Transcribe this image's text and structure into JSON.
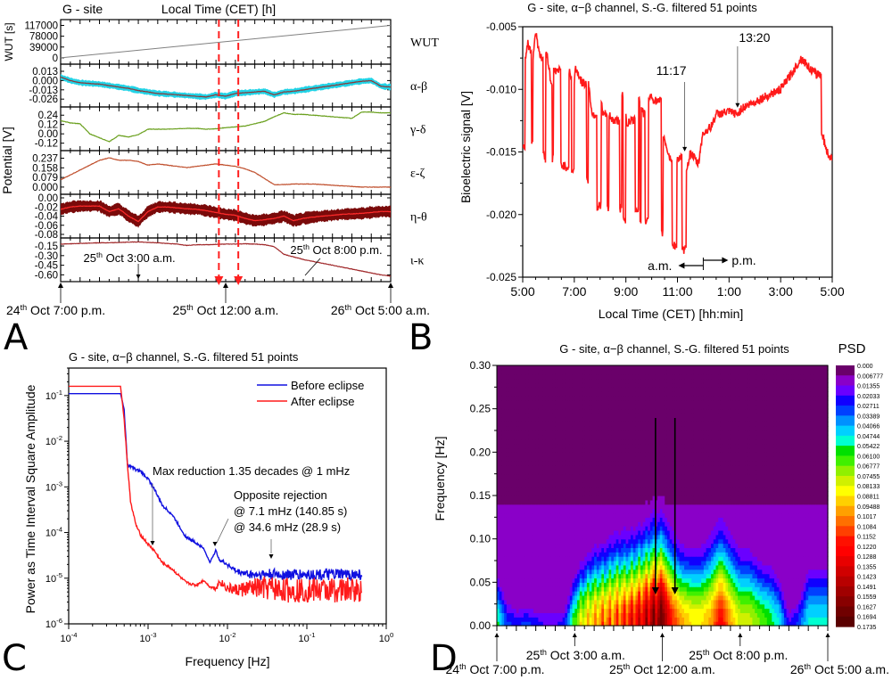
{
  "figure": {
    "panel_letters": [
      "A",
      "B",
      "C",
      "D"
    ]
  },
  "chart_data": [
    {
      "panel": "A",
      "type": "line",
      "title": "G - site",
      "top_label": "Local Time (CET) [h]",
      "ylabel_outer": "Potential [V]",
      "x_start": 0,
      "x_end": 34,
      "x_unit": "hours since 24 Oct 7:00 p.m.",
      "x_major_ticks_every": 1,
      "eclipse_markers_hours": [
        16.3,
        18.3
      ],
      "bottom_annotations": [
        {
          "text_day": "24",
          "text_sup": "th",
          "text_rest": " Oct 7:00 p.m.",
          "x_hour": 0,
          "row": "bottom"
        },
        {
          "text_day": "25",
          "text_sup": "th",
          "text_rest": " Oct 12:00 a.m.",
          "x_hour": 17,
          "row": "bottom"
        },
        {
          "text_day": "26",
          "text_sup": "th",
          "text_rest": " Oct 5:00 a.m.",
          "x_hour": 34,
          "row": "bottom"
        },
        {
          "text_day": "25",
          "text_sup": "th",
          "text_rest": " Oct 3:00 a.m.",
          "x_hour": 8,
          "row": "inner"
        },
        {
          "text_day": "25",
          "text_sup": "th",
          "text_rest": " Oct 8:00 p.m.",
          "x_hour": 25,
          "row": "inner"
        }
      ],
      "subplots": [
        {
          "name": "WUT",
          "ylabel": "WUT [s]",
          "yticks": [
            "117000",
            "78000",
            "39000",
            "0"
          ],
          "ylim": [
            -10000,
            125000
          ],
          "series": [
            {
              "name": "WUT",
              "color": "#808080",
              "values": [
                0,
                117000
              ]
            }
          ]
        },
        {
          "name": "α-β",
          "yticks": [
            "0.013",
            "0.000",
            "-0.013",
            "-0.026"
          ],
          "ylim": [
            -0.032,
            0.018
          ],
          "series": [
            {
              "name": "raw",
              "color": "#22d3e6",
              "band": 0.004
            },
            {
              "name": "filtered",
              "color": "#8b3a3a",
              "values": [
                0.005,
                0.0,
                -0.003,
                -0.004,
                -0.005,
                -0.007,
                -0.009,
                -0.011,
                -0.014,
                -0.016,
                -0.018,
                -0.019,
                -0.02,
                -0.021,
                -0.022,
                -0.023,
                -0.02,
                -0.022,
                -0.018,
                -0.017,
                -0.016,
                -0.015,
                -0.02,
                -0.016,
                -0.015,
                -0.013,
                -0.011,
                -0.009,
                -0.007,
                -0.005,
                -0.003,
                -0.001,
                0.0,
                -0.008,
                -0.009
              ]
            }
          ]
        },
        {
          "name": "γ-δ",
          "yticks": [
            "0.24",
            "0.12",
            "0.00",
            "-0.12"
          ],
          "ylim": [
            -0.17,
            0.3
          ],
          "series": [
            {
              "name": "γ-δ",
              "color": "#6aa01e",
              "values": [
                0.17,
                0.14,
                0.13,
                0.0,
                -0.05,
                -0.1,
                -0.02,
                -0.04,
                -0.01,
                0.06,
                0.06,
                0.06,
                0.065,
                0.07,
                0.07,
                0.06,
                0.065,
                0.08,
                0.09,
                0.1,
                0.13,
                0.16,
                0.22,
                0.27,
                0.25,
                0.25,
                0.24,
                0.23,
                0.22,
                0.21,
                0.2,
                0.28,
                0.28,
                0.27,
                0.27
              ]
            }
          ]
        },
        {
          "name": "ε-ζ",
          "yticks": [
            "0.237",
            "0.158",
            "0.079",
            "0.000"
          ],
          "ylim": [
            -0.03,
            0.27
          ],
          "series": [
            {
              "name": "ε-ζ",
              "color": "#c0502e",
              "values": [
                0.06,
                0.1,
                0.14,
                0.18,
                0.22,
                0.24,
                0.22,
                0.22,
                0.21,
                0.18,
                0.19,
                0.18,
                0.17,
                0.16,
                0.17,
                0.18,
                0.19,
                0.18,
                0.17,
                0.15,
                0.12,
                0.07,
                0.02,
                0.02,
                0.025,
                0.025,
                0.025,
                0.02,
                0.015,
                0.01,
                0.005,
                0.0,
                0.0,
                0.0,
                0.0
              ]
            }
          ]
        },
        {
          "name": "η-θ",
          "yticks": [
            "0.00",
            "-0.02",
            "-0.04",
            "-0.06",
            "-0.08"
          ],
          "ylim": [
            -0.08,
            0.0
          ],
          "series": [
            {
              "name": "raw",
              "color": "#7a0a0a",
              "band": 0.012
            },
            {
              "name": "filtered",
              "color": "#ff2b2b",
              "values": [
                -0.025,
                -0.02,
                -0.018,
                -0.018,
                -0.018,
                -0.03,
                -0.024,
                -0.04,
                -0.052,
                -0.03,
                -0.02,
                -0.02,
                -0.022,
                -0.024,
                -0.025,
                -0.028,
                -0.032,
                -0.036,
                -0.038,
                -0.045,
                -0.05,
                -0.048,
                -0.045,
                -0.04,
                -0.05,
                -0.045,
                -0.042,
                -0.04,
                -0.038,
                -0.036,
                -0.035,
                -0.034,
                -0.032,
                -0.03,
                -0.03
              ]
            }
          ]
        },
        {
          "name": "ι-κ",
          "yticks": [
            "-0.15",
            "-0.30",
            "-0.45",
            "-0.60"
          ],
          "ylim": [
            -0.65,
            -0.08
          ],
          "series": [
            {
              "name": "ι-κ",
              "color": "#a0282a",
              "values": [
                -0.12,
                -0.115,
                -0.11,
                -0.105,
                -0.1,
                -0.1,
                -0.095,
                -0.09,
                -0.085,
                -0.095,
                -0.1,
                -0.11,
                -0.12,
                -0.14,
                -0.13,
                -0.13,
                -0.125,
                -0.12,
                -0.12,
                -0.115,
                -0.12,
                -0.13,
                -0.16,
                -0.28,
                -0.32,
                -0.36,
                -0.39,
                -0.42,
                -0.45,
                -0.48,
                -0.51,
                -0.54,
                -0.57,
                -0.6,
                -0.62
              ]
            }
          ]
        }
      ]
    },
    {
      "panel": "B",
      "type": "line",
      "title": "G - site, α−β channel, S.-G. filtered 51 points",
      "xlabel": "Local Time (CET) [hh:min]",
      "ylabel": "Bioelectric signal [V]",
      "xticks": [
        "5:00",
        "7:00",
        "9:00",
        "11:00",
        "1:00",
        "3:00",
        "5:00"
      ],
      "x_range_hours": [
        5,
        17
      ],
      "ylim": [
        -0.025,
        -0.005
      ],
      "yticks": [
        "-0.005",
        "-0.010",
        "-0.015",
        "-0.020",
        "-0.025"
      ],
      "color": "#ff1a1a",
      "x": [
        5.0,
        5.1,
        5.2,
        5.3,
        5.35,
        5.4,
        5.5,
        5.55,
        5.6,
        5.7,
        5.8,
        5.85,
        5.9,
        6.0,
        6.1,
        6.15,
        6.2,
        6.3,
        6.5,
        6.7,
        6.8,
        6.85,
        6.9,
        7.0,
        7.05,
        7.1,
        7.3,
        7.5,
        7.55,
        7.6,
        7.7,
        7.9,
        8.0,
        8.05,
        8.1,
        8.3,
        8.35,
        8.5,
        8.8,
        8.85,
        8.9,
        9.0,
        9.05,
        9.1,
        9.4,
        9.5,
        9.55,
        9.6,
        9.7,
        9.75,
        9.9,
        10.2,
        10.4,
        10.45,
        10.5,
        10.7,
        10.8,
        11.0,
        11.2,
        11.3,
        11.35,
        11.4,
        11.5,
        11.8,
        11.85,
        11.9,
        12.0,
        12.3,
        12.5,
        13.0,
        13.33,
        13.5,
        14.0,
        14.5,
        15.0,
        15.5,
        15.8,
        16.0,
        16.2,
        16.4,
        16.6,
        16.8,
        17.0
      ],
      "values": [
        -0.0145,
        -0.0075,
        -0.0063,
        -0.007,
        -0.014,
        -0.0075,
        -0.0053,
        -0.006,
        -0.0065,
        -0.0075,
        -0.015,
        -0.0155,
        -0.0068,
        -0.008,
        -0.0095,
        -0.0155,
        -0.0085,
        -0.0085,
        -0.016,
        -0.0162,
        -0.0085,
        -0.009,
        -0.0165,
        -0.0095,
        -0.0082,
        -0.0085,
        -0.0095,
        -0.0172,
        -0.0095,
        -0.0105,
        -0.012,
        -0.0195,
        -0.0192,
        -0.011,
        -0.012,
        -0.0196,
        -0.012,
        -0.0125,
        -0.0195,
        -0.0105,
        -0.0205,
        -0.012,
        -0.013,
        -0.0125,
        -0.0195,
        -0.0108,
        -0.0205,
        -0.0115,
        -0.012,
        -0.0205,
        -0.0105,
        -0.011,
        -0.0215,
        -0.0135,
        -0.014,
        -0.0155,
        -0.0225,
        -0.0155,
        -0.0228,
        -0.0228,
        -0.0162,
        -0.016,
        -0.015,
        -0.016,
        -0.0155,
        -0.0145,
        -0.0135,
        -0.013,
        -0.012,
        -0.0118,
        -0.012,
        -0.0115,
        -0.011,
        -0.0105,
        -0.01,
        -0.0085,
        -0.0075,
        -0.008,
        -0.0085,
        -0.0088,
        -0.0135,
        -0.015,
        -0.0157
      ],
      "annotations": [
        {
          "text": "11:17",
          "x_hour": 11.28,
          "y": -0.0151
        },
        {
          "text": "13:20",
          "x_hour": 13.33,
          "y": -0.0116
        }
      ],
      "am_pm": {
        "am_label": "a.m.",
        "pm_label": "p.m.",
        "noon_hour": 12
      }
    },
    {
      "panel": "C",
      "type": "line",
      "title": "G - site, α−β channel, S.-G. filtered 51 points",
      "xlabel": "Frequency [Hz]",
      "ylabel": "Power as Time Interval Square Amplitude",
      "xscale": "log",
      "yscale": "log",
      "xlim": [
        0.0001,
        1
      ],
      "ylim": [
        1e-06,
        0.4
      ],
      "xticks": [
        "10^-4",
        "10^-3",
        "10^-2",
        "10^-1",
        "10^0"
      ],
      "yticks": [
        "10^-1",
        "10^-2",
        "10^-3",
        "10^-4",
        "10^-5",
        "10^-6"
      ],
      "legend": {
        "position": "top-right"
      },
      "series": [
        {
          "name": "Before eclipse",
          "color": "#1010e0",
          "x": [
            0.0001,
            0.00045,
            0.0005,
            0.00055,
            0.0006,
            0.0007,
            0.0008,
            0.001,
            0.0012,
            0.0015,
            0.002,
            0.003,
            0.004,
            0.005,
            0.006,
            0.0071,
            0.008,
            0.01,
            0.013,
            0.02,
            0.035,
            0.05,
            0.1,
            0.2,
            0.5
          ],
          "values": [
            0.11,
            0.11,
            0.05,
            0.003,
            0.0028,
            0.0024,
            0.0022,
            0.0015,
            0.0009,
            0.0004,
            0.00025,
            8e-05,
            6e-05,
            4.5e-05,
            2.2e-05,
            4e-05,
            2.5e-05,
            2e-05,
            1.4e-05,
            1.2e-05,
            1.2e-05,
            1.2e-05,
            1.2e-05,
            1.2e-05,
            1.2e-05
          ]
        },
        {
          "name": "After eclipse",
          "color": "#ff1a1a",
          "x": [
            0.0001,
            0.00045,
            0.0005,
            0.00055,
            0.0006,
            0.0007,
            0.0008,
            0.001,
            0.0012,
            0.0015,
            0.002,
            0.003,
            0.004,
            0.005,
            0.006,
            0.0071,
            0.008,
            0.01,
            0.013,
            0.02,
            0.035,
            0.05,
            0.1,
            0.2,
            0.5
          ],
          "values": [
            0.16,
            0.16,
            0.03,
            0.003,
            0.0005,
            0.00015,
            9e-05,
            5.5e-05,
            4e-05,
            2.2e-05,
            1.6e-05,
            8e-06,
            7e-06,
            9e-06,
            6.5e-06,
            6e-06,
            8.5e-06,
            6e-06,
            5.5e-06,
            6e-06,
            6e-06,
            5.5e-06,
            5.5e-06,
            5.5e-06,
            5.5e-06
          ]
        }
      ],
      "annotations": [
        {
          "text": "Max reduction 1.35 decades @ 1 mHz",
          "x": 0.0011
        },
        {
          "text": "Opposite rejection",
          "x": 0.0071
        },
        {
          "text": "@ 7.1 mHz (140.85 s)",
          "x": 0.0071
        },
        {
          "text": "@ 34.6 mHz (28.9 s)",
          "x": 0.0346
        }
      ]
    },
    {
      "panel": "D",
      "type": "heatmap",
      "title": "G - site, α−β channel, S.-G. filtered 51 points",
      "ylabel": "Frequency [Hz]",
      "ylim": [
        0,
        0.3
      ],
      "yticks": [
        "0.30",
        "0.25",
        "0.20",
        "0.15",
        "0.10",
        "0.05",
        "0.00"
      ],
      "x_range_hours": [
        0,
        34
      ],
      "colorbar_title": "PSD",
      "colorbar_ticks": [
        "0.000",
        "0.006777",
        "0.01355",
        "0.02033",
        "0.02711",
        "0.03389",
        "0.04066",
        "0.04744",
        "0.05422",
        "0.06100",
        "0.06777",
        "0.07455",
        "0.08133",
        "0.08811",
        "0.09488",
        "0.1017",
        "0.1084",
        "0.1152",
        "0.1220",
        "0.1288",
        "0.1355",
        "0.1423",
        "0.1491",
        "0.1559",
        "0.1627",
        "0.1694",
        "0.1735"
      ],
      "colorbar_colors": [
        "#6a006a",
        "#8a00c8",
        "#6a00ff",
        "#1000ff",
        "#0040ff",
        "#0090ff",
        "#00d0ff",
        "#00ffd0",
        "#00e000",
        "#40f000",
        "#90f000",
        "#d0f000",
        "#ffff00",
        "#ffd000",
        "#ffa000",
        "#ff7000",
        "#ff4000",
        "#ff1000",
        "#ff0000",
        "#e80000",
        "#d00000",
        "#b80000",
        "#a00000",
        "#880000",
        "#700000",
        "#5a0000"
      ],
      "intensity_peak_hz_by_hour": [
        0.05,
        0.03,
        0.02,
        0.02,
        0.02,
        0.02,
        0.02,
        0.02,
        0.05,
        0.06,
        0.07,
        0.07,
        0.08,
        0.08,
        0.08,
        0.085,
        0.09,
        0.09,
        0.08,
        0.07,
        0.07,
        0.07,
        0.08,
        0.09,
        0.08,
        0.07,
        0.07,
        0.06,
        0.06,
        0.05,
        0.02,
        0.03,
        0.06,
        0.06
      ],
      "intensity_max_by_hour": [
        0.06,
        0.03,
        0.025,
        0.03,
        0.025,
        0.02,
        0.02,
        0.025,
        0.07,
        0.09,
        0.1,
        0.11,
        0.11,
        0.12,
        0.13,
        0.14,
        0.16,
        0.17,
        0.12,
        0.1,
        0.09,
        0.09,
        0.1,
        0.13,
        0.1,
        0.08,
        0.08,
        0.07,
        0.06,
        0.05,
        0.02,
        0.03,
        0.05,
        0.05
      ],
      "arrows_hours": [
        16.3,
        18.3
      ],
      "bottom_annotations": [
        {
          "text_day": "24",
          "text_sup": "th",
          "text_rest": " Oct 7:00 p.m.",
          "x_hour": 0,
          "row": "bottom"
        },
        {
          "text_day": "25",
          "text_sup": "th",
          "text_rest": " Oct 12:00 a.m.",
          "x_hour": 17,
          "row": "bottom"
        },
        {
          "text_day": "26",
          "text_sup": "th",
          "text_rest": " Oct 5:00 a.m.",
          "x_hour": 34,
          "row": "bottom"
        },
        {
          "text_day": "25",
          "text_sup": "th",
          "text_rest": " Oct 3:00 a.m.",
          "x_hour": 8,
          "row": "inner"
        },
        {
          "text_day": "25",
          "text_sup": "th",
          "text_rest": " Oct 8:00 p.m.",
          "x_hour": 25,
          "row": "inner"
        }
      ]
    }
  ]
}
